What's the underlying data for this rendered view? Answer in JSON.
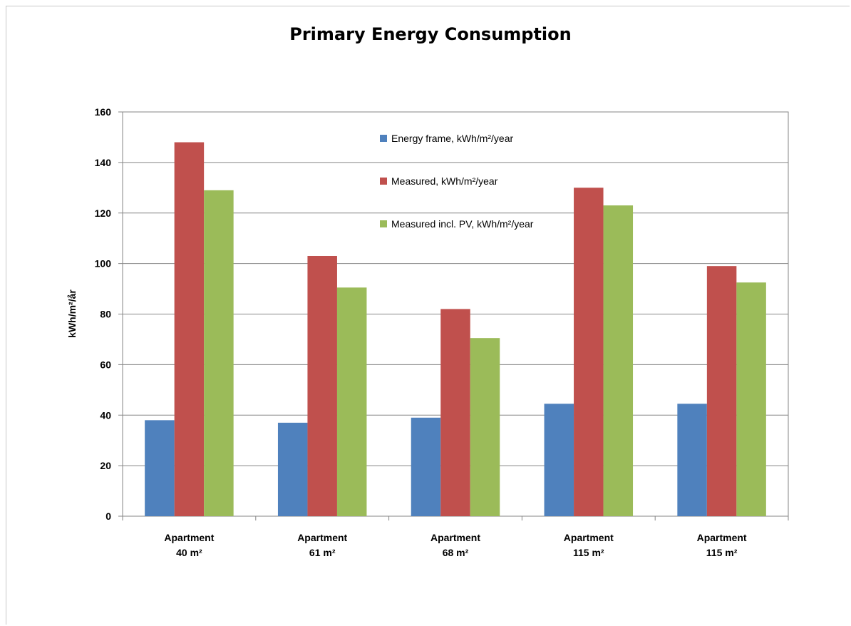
{
  "chart_data": {
    "type": "bar",
    "title": "Primary Energy Consumption",
    "ylabel": "kWh/m²/år",
    "xlabel": "",
    "ylim": [
      0,
      160
    ],
    "yticks": [
      0,
      20,
      40,
      60,
      80,
      100,
      120,
      140,
      160
    ],
    "grid": true,
    "legend_position": "top-right",
    "categories": [
      {
        "line1": "Apartment",
        "line2": "40 m²"
      },
      {
        "line1": "Apartment",
        "line2": "61 m²"
      },
      {
        "line1": "Apartment",
        "line2": "68 m²"
      },
      {
        "line1": "Apartment",
        "line2": "115 m²"
      },
      {
        "line1": "Apartment",
        "line2": "115 m²"
      }
    ],
    "series": [
      {
        "name": "Energy frame,  kWh/m²/year",
        "color": "#4f81bd",
        "values": [
          38,
          37,
          39,
          44.5,
          44.5
        ]
      },
      {
        "name": "Measured,  kWh/m²/year",
        "color": "#c0504d",
        "values": [
          148,
          103,
          82,
          130,
          99
        ]
      },
      {
        "name": "Measured incl. PV,  kWh/m²/year",
        "color": "#9bbb59",
        "values": [
          129,
          90.5,
          70.5,
          123,
          92.5
        ]
      }
    ]
  },
  "colors": {
    "grid": "#868686",
    "plot_border": "#868686"
  }
}
